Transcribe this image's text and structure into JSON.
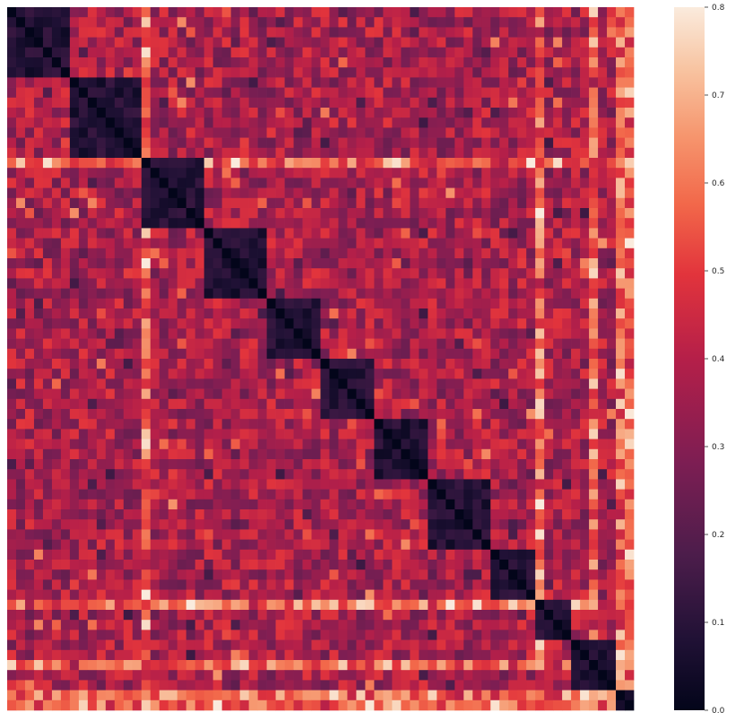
{
  "chart_data": {
    "type": "heatmap",
    "title": "",
    "xlabel": "",
    "ylabel": "",
    "rows": 70,
    "cols": 70,
    "value_range": [
      0.0,
      0.8
    ],
    "colormap": "rocket",
    "grid": false,
    "legend": "colorbar-right",
    "colorbar": {
      "ticks": [
        "0.0",
        "0.1",
        "0.2",
        "0.3",
        "0.4",
        "0.5",
        "0.6",
        "0.7",
        "0.8"
      ],
      "tick_values": [
        0.0,
        0.1,
        0.2,
        0.3,
        0.4,
        0.5,
        0.6,
        0.7,
        0.8
      ]
    },
    "cluster_breaks": [
      0,
      7,
      15,
      22,
      29,
      35,
      41,
      47,
      54,
      59,
      63,
      68,
      70
    ],
    "high_rows": [
      15,
      65,
      69
    ],
    "high_cols": [
      15,
      59,
      68
    ],
    "values_note": "approximate; matrix values are generated in the script below"
  }
}
